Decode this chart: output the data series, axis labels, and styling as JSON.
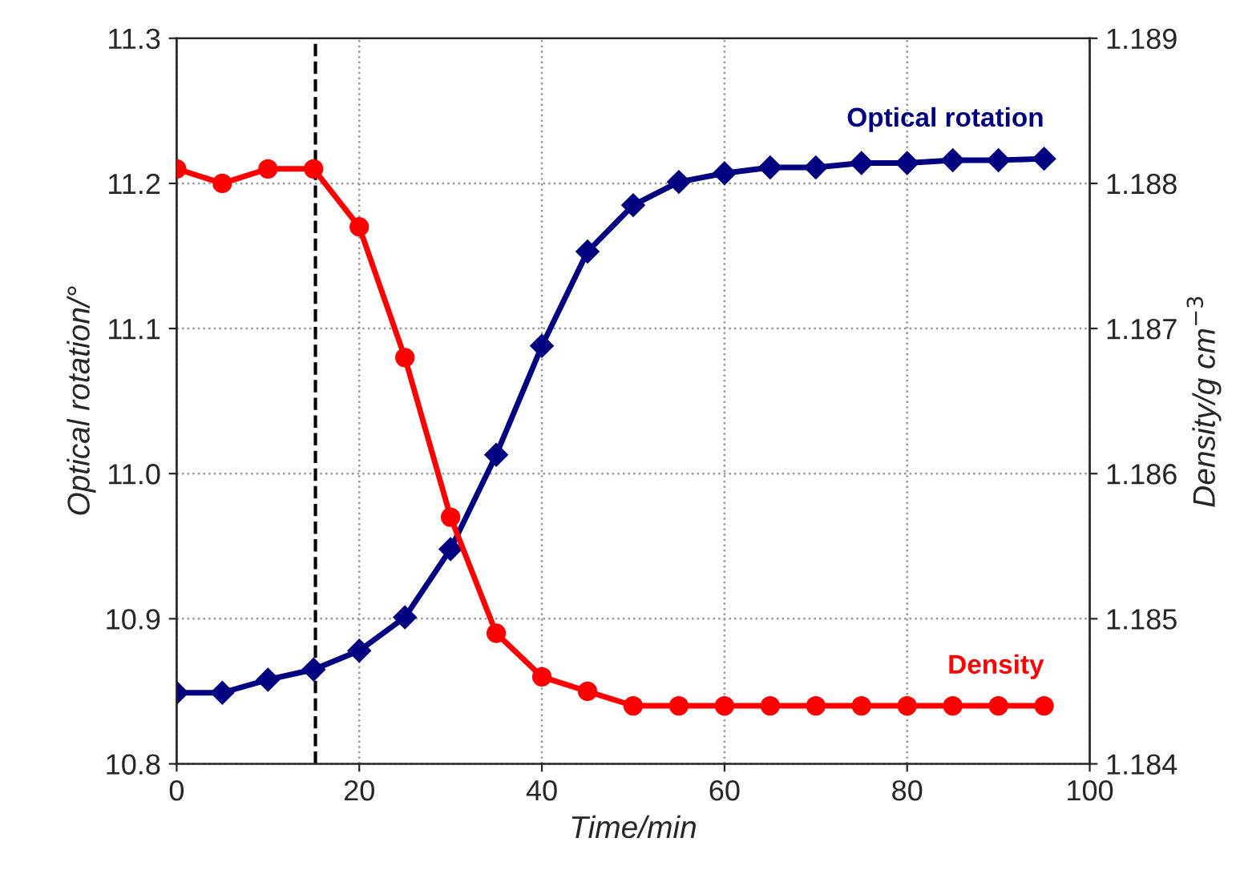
{
  "chart_data": {
    "type": "line",
    "xlabel": "Time/min",
    "ylabel": "Optical rotation/°",
    "y2label": "Density/g cm$^{−3}$",
    "x": [
      0,
      5,
      10,
      15,
      20,
      25,
      30,
      35,
      40,
      45,
      50,
      55,
      60,
      65,
      70,
      75,
      80,
      85,
      90,
      95
    ],
    "series": [
      {
        "name": "Optical rotation",
        "color": "#000080",
        "marker": "diamond",
        "values": [
          10.849,
          10.849,
          10.858,
          10.865,
          10.878,
          10.901,
          10.948,
          11.013,
          11.088,
          11.153,
          11.185,
          11.201,
          11.207,
          11.211,
          11.211,
          11.214,
          11.214,
          11.216,
          11.216,
          11.217
        ]
      },
      {
        "name": "Density",
        "color": "#ff0000",
        "marker": "circle",
        "axis": "y2",
        "values": [
          1.1881,
          1.188,
          1.1881,
          1.1881,
          1.1877,
          1.1868,
          1.1857,
          1.1849,
          1.1846,
          1.1845,
          1.1844,
          1.1844,
          1.1844,
          1.1844,
          1.1844,
          1.1844,
          1.1844,
          1.1844,
          1.1844,
          1.1844
        ]
      }
    ],
    "xlim": [
      0,
      100
    ],
    "xticks": [
      0,
      20,
      40,
      60,
      80,
      100
    ],
    "ylim": [
      10.8,
      11.3
    ],
    "yticks": [
      {
        "value": 10.8,
        "label": "10.8"
      },
      {
        "value": 10.9,
        "label": "10.9"
      },
      {
        "value": 11.0,
        "label": "11.0"
      },
      {
        "value": 11.1,
        "label": "11.1"
      },
      {
        "value": 11.2,
        "label": "11.2"
      },
      {
        "value": 11.3,
        "label": "11.3"
      }
    ],
    "y2lim": [
      1.184,
      1.189
    ],
    "y2ticks": [
      1.184,
      1.185,
      1.186,
      1.187,
      1.188,
      1.189
    ],
    "ref_lines": [
      {
        "axis": "x",
        "value": 15.2,
        "color": "#000000",
        "line_style": "dashed"
      }
    ],
    "grid": true,
    "legend": false,
    "line_style": "solid"
  }
}
